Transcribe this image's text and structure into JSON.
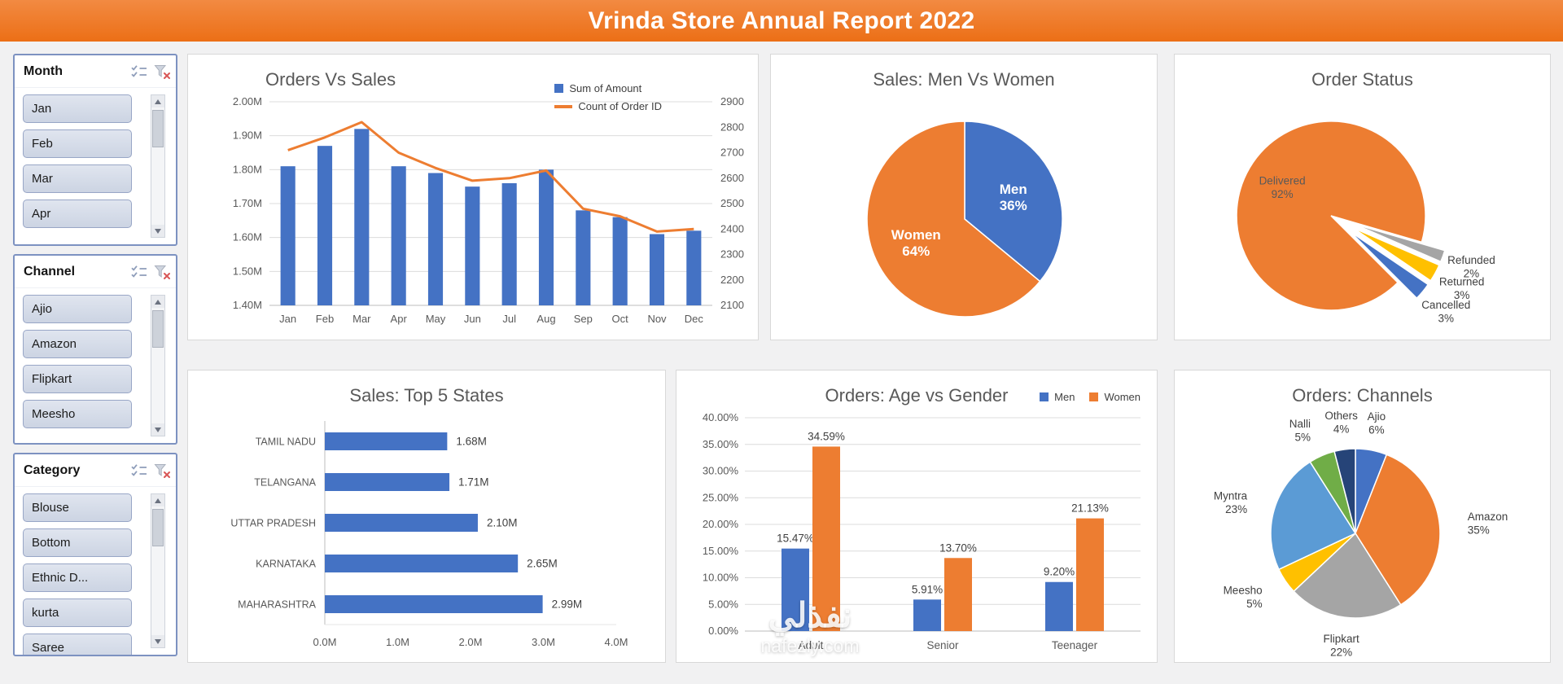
{
  "header": {
    "title": "Vrinda Store Annual Report 2022",
    "bg": "#ED7D31"
  },
  "watermark": {
    "line1": "نفذلي",
    "line2": "nafezly.com"
  },
  "palette": {
    "blue": "#4472C4",
    "orange": "#ED7D31",
    "gray": "#A5A5A5",
    "yellow": "#FFC000",
    "light_blue": "#5B9BD5",
    "green": "#70AD47",
    "navy": "#264478"
  },
  "icons": {
    "multiselect": "list-with-checks",
    "clear_filter": "funnel-with-red-x",
    "scroll_up": "triangle-up",
    "scroll_down": "triangle-down"
  },
  "slicers": [
    {
      "name": "Month",
      "items": [
        "Jan",
        "Feb",
        "Mar",
        "Apr"
      ]
    },
    {
      "name": "Channel",
      "items": [
        "Ajio",
        "Amazon",
        "Flipkart",
        "Meesho"
      ]
    },
    {
      "name": "Category",
      "items": [
        "Blouse",
        "Bottom",
        "Ethnic D...",
        "kurta",
        "Saree"
      ]
    }
  ],
  "chart_data": [
    {
      "id": "orders_vs_sales",
      "type": "combo",
      "title": "Orders Vs Sales",
      "categories": [
        "Jan",
        "Feb",
        "Mar",
        "Apr",
        "May",
        "Jun",
        "Jul",
        "Aug",
        "Sep",
        "Oct",
        "Nov",
        "Dec"
      ],
      "series": [
        {
          "name": "Sum of Amount",
          "chart": "bar",
          "axis": "left",
          "color": "#4472C4",
          "values": [
            1.81,
            1.87,
            1.92,
            1.81,
            1.79,
            1.75,
            1.76,
            1.8,
            1.68,
            1.66,
            1.61,
            1.62
          ]
        },
        {
          "name": "Count of Order ID",
          "chart": "line",
          "axis": "right",
          "color": "#ED7D31",
          "values": [
            2710,
            2760,
            2820,
            2700,
            2640,
            2590,
            2600,
            2630,
            2480,
            2450,
            2390,
            2400
          ]
        }
      ],
      "left_axis": {
        "min": 1.4,
        "max": 2.0,
        "step": 0.1,
        "suffix": "M",
        "decimals": 2
      },
      "right_axis": {
        "min": 2100,
        "max": 2900,
        "step": 100
      },
      "grid": true,
      "legend_position": "top-right"
    },
    {
      "id": "men_vs_women",
      "type": "pie",
      "title": "Sales: Men Vs Women",
      "start_angle": 0,
      "slices": [
        {
          "label": "Men",
          "value": 36,
          "pct": "36%",
          "color": "#4472C4",
          "label_inside": true
        },
        {
          "label": "Women",
          "value": 64,
          "pct": "64%",
          "color": "#ED7D31",
          "label_inside": true
        }
      ]
    },
    {
      "id": "order_status",
      "type": "pie",
      "title": "Order Status",
      "start_angle": 135,
      "slices": [
        {
          "label": "Delivered",
          "value": 92,
          "pct": "92%",
          "color": "#ED7D31",
          "label_inside": true
        },
        {
          "label": "Refunded",
          "value": 2,
          "pct": "2%",
          "color": "#A5A5A5",
          "explode": true
        },
        {
          "label": "Returned",
          "value": 3,
          "pct": "3%",
          "color": "#FFC000",
          "explode": true
        },
        {
          "label": "Cancelled",
          "value": 3,
          "pct": "3%",
          "color": "#4472C4",
          "explode": true
        }
      ]
    },
    {
      "id": "top5_states",
      "type": "hbar",
      "title": "Sales: Top 5 States",
      "categories": [
        "TAMIL NADU",
        "TELANGANA",
        "UTTAR PRADESH",
        "KARNATAKA",
        "MAHARASHTRA"
      ],
      "values": [
        1.68,
        1.71,
        2.1,
        2.65,
        2.99
      ],
      "value_labels": [
        "1.68M",
        "1.71M",
        "2.10M",
        "2.65M",
        "2.99M"
      ],
      "xaxis": {
        "min": 0,
        "max": 4,
        "step": 1,
        "suffix": "M",
        "decimals": 1
      },
      "color": "#4472C4"
    },
    {
      "id": "age_vs_gender",
      "type": "column",
      "title": "Orders: Age vs Gender",
      "categories": [
        "Adult",
        "Senior",
        "Teenager"
      ],
      "series": [
        {
          "name": "Men",
          "color": "#4472C4",
          "values": [
            15.47,
            5.91,
            9.2
          ],
          "labels": [
            "15.47%",
            "5.91%",
            "9.20%"
          ]
        },
        {
          "name": "Women",
          "color": "#ED7D31",
          "values": [
            34.59,
            13.7,
            21.13
          ],
          "labels": [
            "34.59%",
            "13.70%",
            "21.13%"
          ]
        }
      ],
      "yaxis": {
        "min": 0,
        "max": 40,
        "step": 5,
        "suffix": "%",
        "decimals": 2
      },
      "grid": true,
      "legend_position": "top-right"
    },
    {
      "id": "channels",
      "type": "pie",
      "title": "Orders: Channels",
      "start_angle": 0,
      "slices": [
        {
          "label": "Ajio",
          "value": 6,
          "pct": "6%",
          "color": "#4472C4"
        },
        {
          "label": "Amazon",
          "value": 35,
          "pct": "35%",
          "color": "#ED7D31"
        },
        {
          "label": "Flipkart",
          "value": 22,
          "pct": "22%",
          "color": "#A5A5A5"
        },
        {
          "label": "Meesho",
          "value": 5,
          "pct": "5%",
          "color": "#FFC000"
        },
        {
          "label": "Myntra",
          "value": 23,
          "pct": "23%",
          "color": "#5B9BD5"
        },
        {
          "label": "Nalli",
          "value": 5,
          "pct": "5%",
          "color": "#70AD47"
        },
        {
          "label": "Others",
          "value": 4,
          "pct": "4%",
          "color": "#264478"
        }
      ]
    }
  ]
}
